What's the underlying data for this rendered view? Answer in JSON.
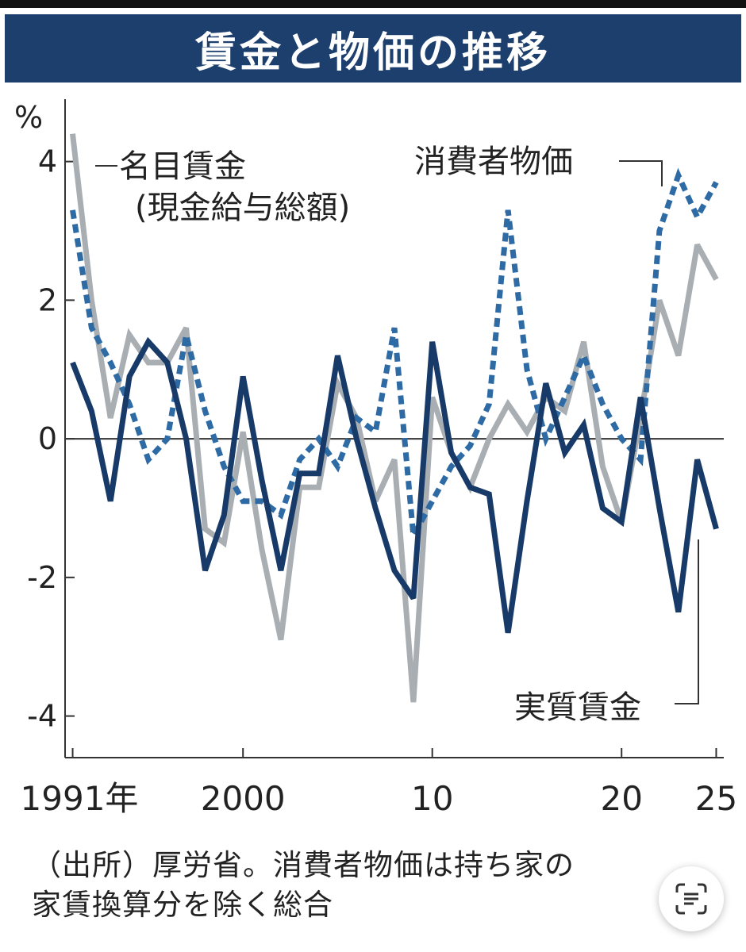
{
  "title": "賃金と物価の推移",
  "chart_data": {
    "type": "line",
    "title": "賃金と物価の推移",
    "ylabel": "%",
    "ylim": [
      -4.6,
      4.9
    ],
    "xlim": [
      1990.6,
      2025.4
    ],
    "yticks": [
      4,
      2,
      0,
      -2,
      -4
    ],
    "ytick_labels": [
      "4",
      "2",
      "0",
      "-2",
      "-4"
    ],
    "xticks": [
      1991,
      2000,
      2010,
      2020,
      2025
    ],
    "xtick_labels": [
      "1991年",
      "2000",
      "10",
      "20",
      "25"
    ],
    "x": [
      1991,
      1992,
      1993,
      1994,
      1995,
      1996,
      1997,
      1998,
      1999,
      2000,
      2001,
      2002,
      2003,
      2004,
      2005,
      2006,
      2007,
      2008,
      2009,
      2010,
      2011,
      2012,
      2013,
      2014,
      2015,
      2016,
      2017,
      2018,
      2019,
      2020,
      2021,
      2022,
      2023,
      2024,
      2025
    ],
    "series": [
      {
        "name": "名目賃金",
        "label_line1": "名目賃金",
        "label_line2": "(現金給与総額)",
        "color": "#a9aeb3",
        "style": "solid",
        "values": [
          4.4,
          2.0,
          0.3,
          1.5,
          1.1,
          1.1,
          1.6,
          -1.3,
          -1.5,
          0.1,
          -1.6,
          -2.9,
          -0.7,
          -0.7,
          0.8,
          0.3,
          -0.9,
          -0.3,
          -3.8,
          0.6,
          -0.2,
          -0.7,
          0.0,
          0.5,
          0.1,
          0.6,
          0.4,
          1.4,
          -0.4,
          -1.2,
          0.3,
          2.0,
          1.2,
          2.8,
          2.3
        ]
      },
      {
        "name": "消費者物価",
        "label": "消費者物価",
        "color": "#2e6aa3",
        "style": "dashed",
        "values": [
          3.3,
          1.6,
          1.1,
          0.5,
          -0.3,
          0.0,
          1.5,
          0.4,
          -0.4,
          -0.9,
          -0.9,
          -1.1,
          -0.3,
          0.0,
          -0.4,
          0.3,
          0.1,
          1.6,
          -1.4,
          -0.9,
          -0.4,
          -0.1,
          0.5,
          3.3,
          1.0,
          0.0,
          0.6,
          1.2,
          0.5,
          0.0,
          -0.3,
          3.0,
          3.8,
          3.2,
          3.7
        ]
      },
      {
        "name": "実質賃金",
        "label": "実質賃金",
        "color": "#173a68",
        "style": "solid",
        "values": [
          1.1,
          0.4,
          -0.9,
          0.9,
          1.4,
          1.1,
          0.0,
          -1.9,
          -1.1,
          0.9,
          -0.6,
          -1.9,
          -0.5,
          -0.5,
          1.2,
          0.0,
          -1.0,
          -1.9,
          -2.3,
          1.4,
          -0.2,
          -0.7,
          -0.8,
          -2.8,
          -0.9,
          0.8,
          -0.2,
          0.2,
          -1.0,
          -1.2,
          0.6,
          -1.0,
          -2.5,
          -0.3,
          -1.3
        ]
      }
    ]
  },
  "source_line1": "（出所）厚労省。消費者物価は持ち家の",
  "source_line2": "家賃換算分を除く総合"
}
